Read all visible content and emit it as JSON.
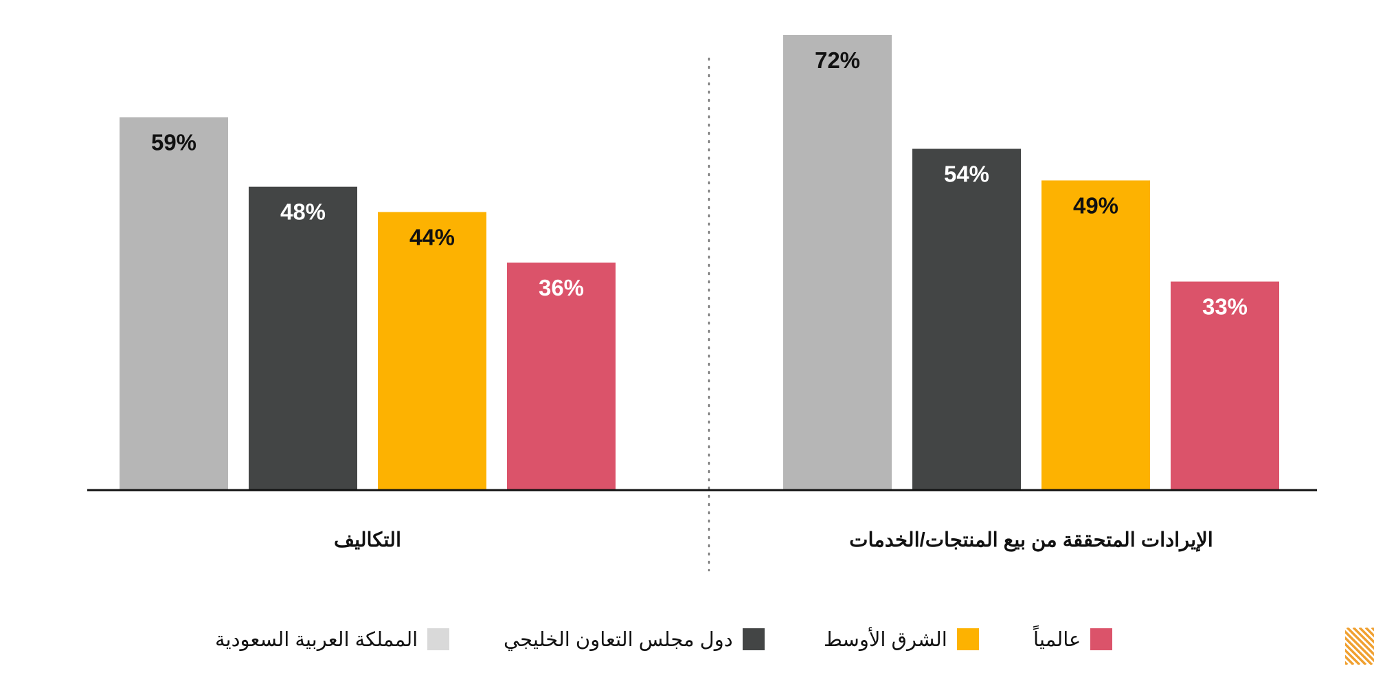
{
  "chart_data": {
    "type": "bar",
    "categories": [
      "الإيرادات المتحققة من بيع المنتجات/الخدمات",
      "التكاليف"
    ],
    "series": [
      {
        "name": "المملكة العربية السعودية",
        "color": "#b6b6b6",
        "label_color": "#111111",
        "values": [
          72,
          59
        ]
      },
      {
        "name": "دول مجلس التعاون الخليجي",
        "color": "#434545",
        "label_color": "#ffffff",
        "values": [
          54,
          48
        ]
      },
      {
        "name": "الشرق الأوسط",
        "color": "#fdb201",
        "label_color": "#111111",
        "values": [
          49,
          44
        ]
      },
      {
        "name": "عالمياً",
        "color": "#db536a",
        "label_color": "#ffffff",
        "values": [
          33,
          36
        ]
      }
    ],
    "value_format": "%",
    "ylim": [
      0,
      72
    ],
    "legend_placement": "bottom",
    "grid": false,
    "group_divider": "dotted"
  },
  "legend": {
    "items": [
      {
        "label": "عالمياً",
        "color": "#db536a"
      },
      {
        "label": "الشرق الأوسط",
        "color": "#fdb201"
      },
      {
        "label": "دول مجلس التعاون الخليجي",
        "color": "#434545"
      },
      {
        "label": "المملكة العربية السعودية",
        "color": "#d9d9d9"
      }
    ]
  },
  "corner_mark": {
    "color": "#f0a030",
    "icon": "striped-corner-icon"
  }
}
